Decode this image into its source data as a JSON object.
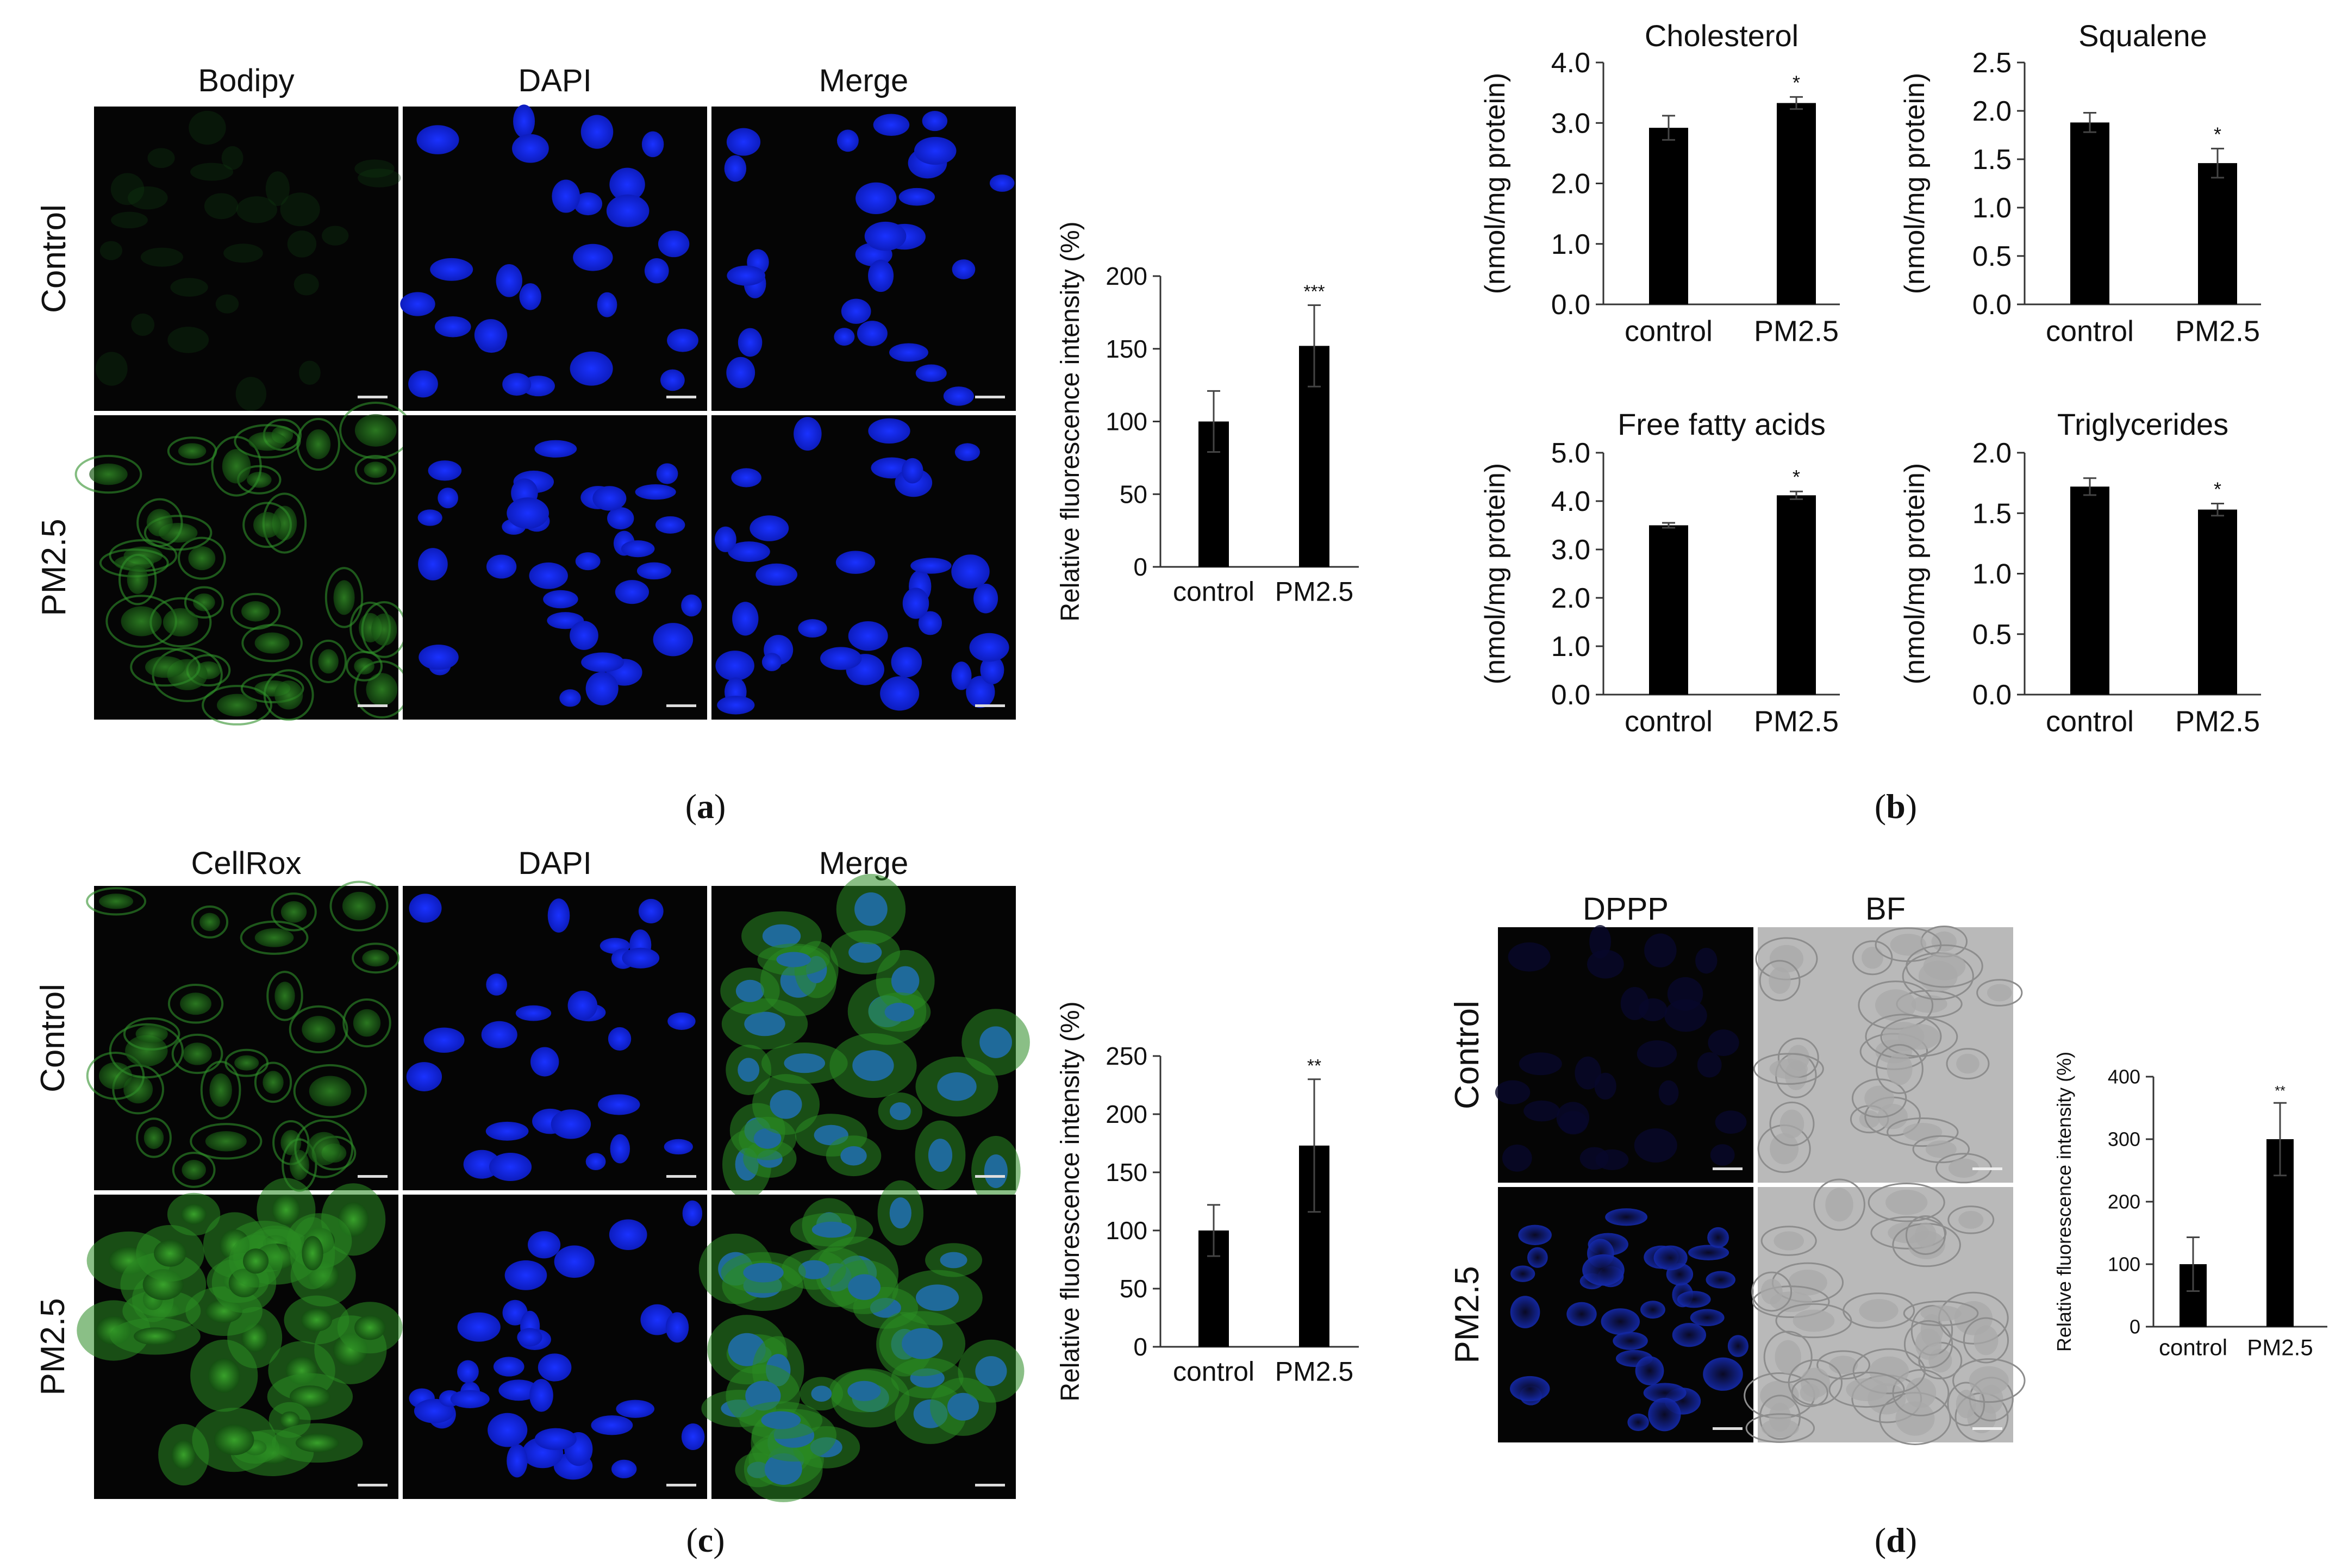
{
  "panels": {
    "a": {
      "letter": "a",
      "columns": [
        "Bodipy",
        "DAPI",
        "Merge"
      ],
      "rows": [
        "Control",
        "PM2.5"
      ],
      "signal_colors": [
        "#1f8a25",
        "#1428e6",
        "#1c5aa0"
      ]
    },
    "c": {
      "letter": "c",
      "columns": [
        "CellRox",
        "DAPI",
        "Merge"
      ],
      "rows": [
        "Control",
        "PM2.5"
      ],
      "signal_colors": [
        "#2f8f22",
        "#1428e6",
        "#246a88"
      ]
    },
    "d": {
      "letter": "d",
      "columns": [
        "DPPP",
        "BF"
      ],
      "rows": [
        "Control",
        "PM2.5"
      ],
      "signal_colors": [
        "#1426c8",
        "#c9c9c9"
      ]
    },
    "b": {
      "letter": "b"
    }
  },
  "chart_data": [
    {
      "id": "a",
      "type": "bar",
      "title": "",
      "ylabel": "Relative fluorescence intensity (%)",
      "categories": [
        "control",
        "PM2.5"
      ],
      "values": [
        100,
        152
      ],
      "errors": [
        21,
        28
      ],
      "significance": [
        "",
        "***"
      ],
      "yticks": [
        "0",
        "50",
        "100",
        "150",
        "200"
      ],
      "ylim": [
        0,
        200
      ]
    },
    {
      "id": "c",
      "type": "bar",
      "title": "",
      "ylabel": "Relative fluorescence intensity (%)",
      "categories": [
        "control",
        "PM2.5"
      ],
      "values": [
        100,
        173
      ],
      "errors": [
        22,
        57
      ],
      "significance": [
        "",
        "**"
      ],
      "yticks": [
        "0",
        "50",
        "100",
        "150",
        "200",
        "250"
      ],
      "ylim": [
        0,
        250
      ]
    },
    {
      "id": "d",
      "type": "bar",
      "title": "",
      "ylabel": "Relative fluorescence intensity (%)",
      "categories": [
        "control",
        "PM2.5"
      ],
      "values": [
        100,
        300
      ],
      "errors": [
        43,
        58
      ],
      "significance": [
        "",
        "**"
      ],
      "yticks": [
        "0",
        "100",
        "200",
        "300",
        "400"
      ],
      "ylim": [
        0,
        400
      ]
    },
    {
      "id": "b1",
      "type": "bar",
      "title": "Cholesterol",
      "ylabel": "(nmol/mg protein)",
      "categories": [
        "control",
        "PM2.5"
      ],
      "values": [
        2.92,
        3.33
      ],
      "errors": [
        0.2,
        0.1
      ],
      "significance": [
        "",
        "*"
      ],
      "yticks": [
        "0.0",
        "1.0",
        "2.0",
        "3.0",
        "4.0"
      ],
      "ylim": [
        0,
        4
      ]
    },
    {
      "id": "b2",
      "type": "bar",
      "title": "Squalene",
      "ylabel": "(nmol/mg protein)",
      "categories": [
        "control",
        "PM2.5"
      ],
      "values": [
        1.88,
        1.46
      ],
      "errors": [
        0.1,
        0.15
      ],
      "significance": [
        "",
        "*"
      ],
      "yticks": [
        "0.0",
        "0.5",
        "1.0",
        "1.5",
        "2.0",
        "2.5"
      ],
      "ylim": [
        0,
        2.5
      ]
    },
    {
      "id": "b3",
      "type": "bar",
      "title": "Free fatty acids",
      "ylabel": "(nmol/mg protein)",
      "categories": [
        "control",
        "PM2.5"
      ],
      "values": [
        3.5,
        4.12
      ],
      "errors": [
        0.05,
        0.08
      ],
      "significance": [
        "",
        "*"
      ],
      "yticks": [
        "0.0",
        "1.0",
        "2.0",
        "3.0",
        "4.0",
        "5.0"
      ],
      "ylim": [
        0,
        5
      ]
    },
    {
      "id": "b4",
      "type": "bar",
      "title": "Triglycerides",
      "ylabel": "(nmol/mg protein)",
      "categories": [
        "control",
        "PM2.5"
      ],
      "values": [
        1.72,
        1.53
      ],
      "errors": [
        0.07,
        0.05
      ],
      "significance": [
        "",
        "*"
      ],
      "yticks": [
        "0.0",
        "0.5",
        "1.0",
        "1.5",
        "2.0"
      ],
      "ylim": [
        0,
        2
      ]
    }
  ]
}
